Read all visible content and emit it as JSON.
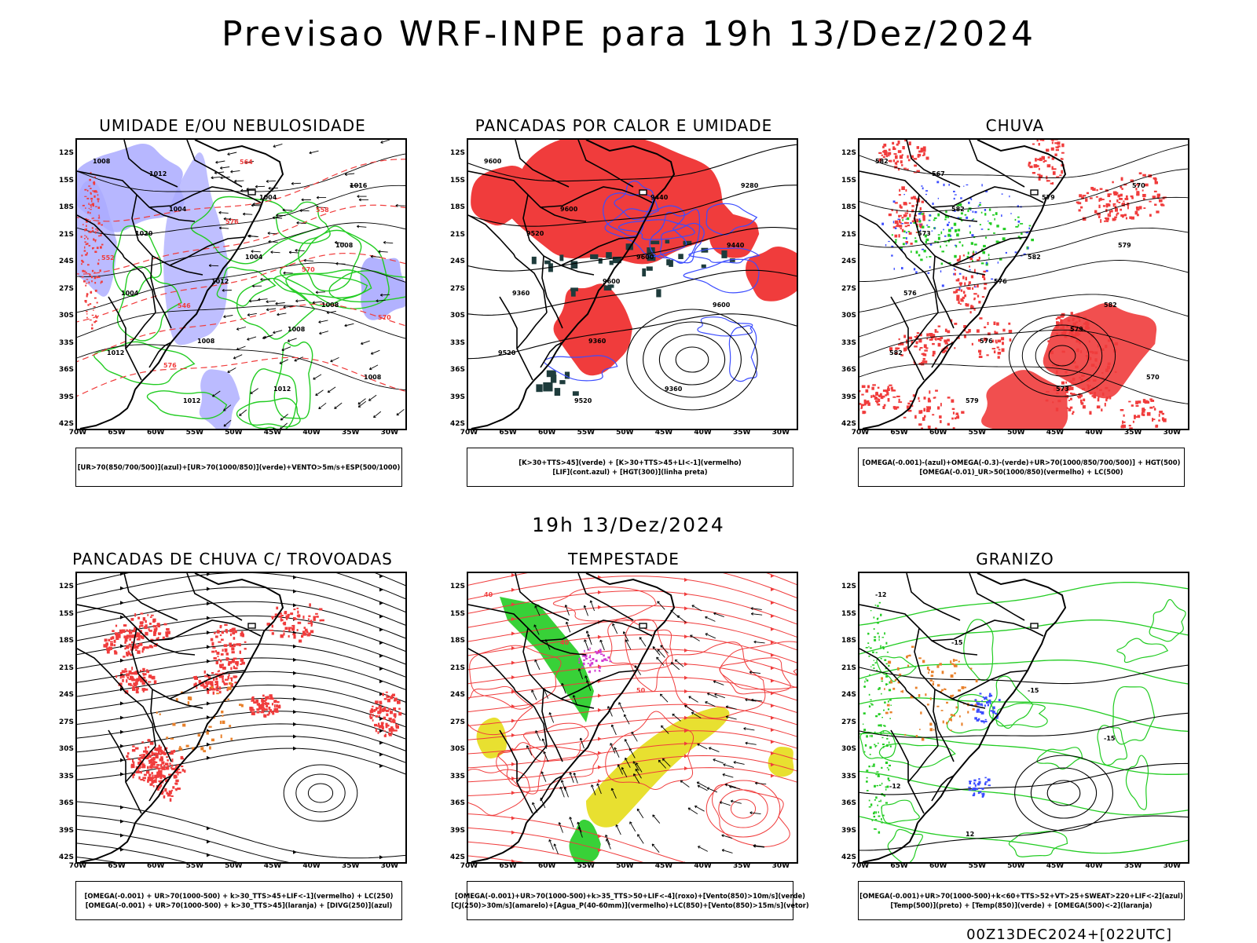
{
  "main_title": "Previsao WRF-INPE  para 19h 13/Dez/2024",
  "mid_title": "19h 13/Dez/2024",
  "footer": "00Z13DEC2024+[022UTC]",
  "axes": {
    "lat_labels": [
      "12S",
      "15S",
      "18S",
      "21S",
      "24S",
      "27S",
      "30S",
      "33S",
      "36S",
      "39S",
      "42S"
    ],
    "lon_labels": [
      "70W",
      "65W",
      "60W",
      "55W",
      "50W",
      "45W",
      "40W",
      "35W",
      "30W"
    ]
  },
  "colors": {
    "red": "#f03c3c",
    "green": "#22cc22",
    "blue": "#3b4cff",
    "lilac": "#aaaaff",
    "yellow": "#e8e030",
    "orange": "#e8802a",
    "darkgreen": "#1e3c3c",
    "magenta": "#d23cd2"
  },
  "panels": [
    {
      "id": "umidade",
      "title": "UMIDADE E/OU NEBULOSIDADE",
      "legend": [
        "[UR>70(850/700/500)](azul)+[UR>70(1000/850)](verde)+VENTO>5m/s+ESP(500/1000)"
      ],
      "contour_labels": [
        "1008",
        "1004",
        "1004",
        "1008",
        "1012",
        "1012",
        "1004",
        "1008",
        "1004",
        "1008",
        "1012",
        "1016",
        "1020",
        "1012",
        "1008",
        "1008",
        "1012",
        "576",
        "570",
        "570",
        "576",
        "564",
        "558",
        "552",
        "546"
      ]
    },
    {
      "id": "pancadas_calor",
      "title": "PANCADAS POR CALOR E UMIDADE",
      "legend": [
        "[K>30+TTS>45](verde) + [K>30+TTS>45+LI<-1](vermelho)",
        "[LIF](cont.azul) + [HGT(300)](linha preta)"
      ],
      "contour_labels": [
        "9600",
        "9600",
        "9600",
        "9600",
        "9520",
        "9520",
        "9440",
        "9440",
        "9360",
        "9360",
        "9360",
        "9280",
        "9520",
        "9600"
      ]
    },
    {
      "id": "chuva",
      "title": "CHUVA",
      "legend": [
        "[OMEGA(-0.001)-(azul)+OMEGA(-0.3)-(verde)+UR>70(1000/850/700/500)] + HGT(500)",
        "[OMEGA(-0.01)_UR>50(1000/850)(vermelho) + LC(500)"
      ],
      "contour_labels": [
        "582",
        "582",
        "582",
        "582",
        "582",
        "579",
        "579",
        "579",
        "576",
        "576",
        "573",
        "570",
        "573",
        "576",
        "579",
        "570",
        "567"
      ]
    },
    {
      "id": "pancadas_trovoadas",
      "title": "PANCADAS DE CHUVA C/ TROVOADAS",
      "legend": [
        "[OMEGA(-0.001) + UR>70(1000-500) + k>30_TTS>45+LIF<-1](vermelho) + LC(250)",
        "[OMEGA(-0.001) + UR>70(1000-500) + k>30_TTS>45](laranja) + [DIVG(250)](azul)"
      ],
      "contour_labels": []
    },
    {
      "id": "tempestade",
      "title": "TEMPESTADE",
      "legend": [
        "[OMEGA(-0.001)+UR>70(1000-500)+k>35_TTS>50+LIF<-4](roxo)+[Vento(850)>10m/s](verde)",
        "[CJ(250)>30m/s](amarelo)+[Agua_P(40-60mm)](vermelho)+LC(850)+[Vento(850)>15m/s](vetor)"
      ],
      "contour_labels": [
        "40",
        "40",
        "50"
      ]
    },
    {
      "id": "granizo",
      "title": "GRANIZO",
      "legend": [
        "[OMEGA(-0.001)+UR>70(1000-500)+k<60+TTS>52+VT>25+SWEAT>220+LIF<-2](azul)",
        "[Temp(500)](preto) + [Temp(850)](verde) + [OMEGA(500)<-2](laranja)"
      ],
      "contour_labels": [
        "-12",
        "-15",
        "-15",
        "-15",
        "-12",
        "12"
      ]
    }
  ]
}
